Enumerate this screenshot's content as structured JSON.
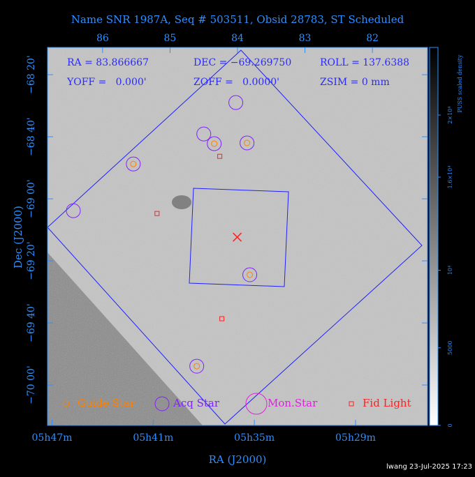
{
  "chart_data": {
    "type": "sky",
    "title": "Name SNR 1987A, Seq # 503511, Obsid 28783, ST Scheduled",
    "xlabel": "RA (J2000)",
    "ylabel": "Dec (J2000)",
    "xlim": [
      86.817,
      81.183
    ],
    "ylim": [
      -68.187,
      -70.217
    ],
    "xticks": [
      {
        "value": 86.75,
        "label": "05h47m"
      },
      {
        "value": 85.25,
        "label": "05h41m"
      },
      {
        "value": 83.75,
        "label": "05h35m"
      },
      {
        "value": 82.25,
        "label": "05h29m"
      }
    ],
    "x2ticks": [
      86,
      85,
      84,
      83,
      82
    ],
    "yticks": [
      {
        "value": -68.3333,
        "label": "−68 20'"
      },
      {
        "value": -68.6667,
        "label": "−68 40'"
      },
      {
        "value": -69,
        "label": "−69 00'"
      },
      {
        "value": -69.3333,
        "label": "−69 20'"
      },
      {
        "value": -69.6667,
        "label": "−69 40'"
      },
      {
        "value": -70,
        "label": "−70 00'"
      }
    ],
    "info": [
      "RA = 83.866667",
      "DEC = −69.269750",
      "ROLL = 137.6388",
      "YOFF =   0.000'",
      "ZOFF =   0.0000'",
      "ZSIM = 0 mm"
    ],
    "series": [
      {
        "name": "Guide Star",
        "color": "#ff8000",
        "x": [
          85.545,
          84.345,
          83.859,
          83.818,
          84.604
        ],
        "y": [
          -68.813,
          -68.704,
          -68.7,
          -69.408,
          -69.899
        ]
      },
      {
        "name": "Acq Star",
        "color": "#8020ff",
        "x": [
          86.434,
          85.545,
          84.5,
          84.345,
          84.025,
          83.859,
          83.818,
          84.604
        ],
        "y": [
          -69.064,
          -68.813,
          -68.652,
          -68.704,
          -68.483,
          -68.7,
          -69.408,
          -69.899
        ]
      },
      {
        "name": "Mon.Star",
        "color": "#e020e0",
        "x": [],
        "y": []
      },
      {
        "name": "Fid Light",
        "color": "#ff2020",
        "x": [
          85.193,
          84.263,
          84.232
        ],
        "y": [
          -69.079,
          -68.772,
          -69.644
        ]
      }
    ],
    "target": {
      "x": 84.004,
      "y": -69.206,
      "color": "#ff2020"
    },
    "colorbar": {
      "label": "PUSS scaled density",
      "lim": [
        0,
        24360
      ],
      "ticks": [
        0,
        5000,
        {
          "value": 10000,
          "label": "10⁴"
        },
        {
          "value": 16000,
          "label": "1.6×10⁴"
        },
        {
          "value": 20000,
          "label": "2×10⁴"
        }
      ]
    },
    "footer": "lwang 23-Jul-2025 17:23"
  }
}
